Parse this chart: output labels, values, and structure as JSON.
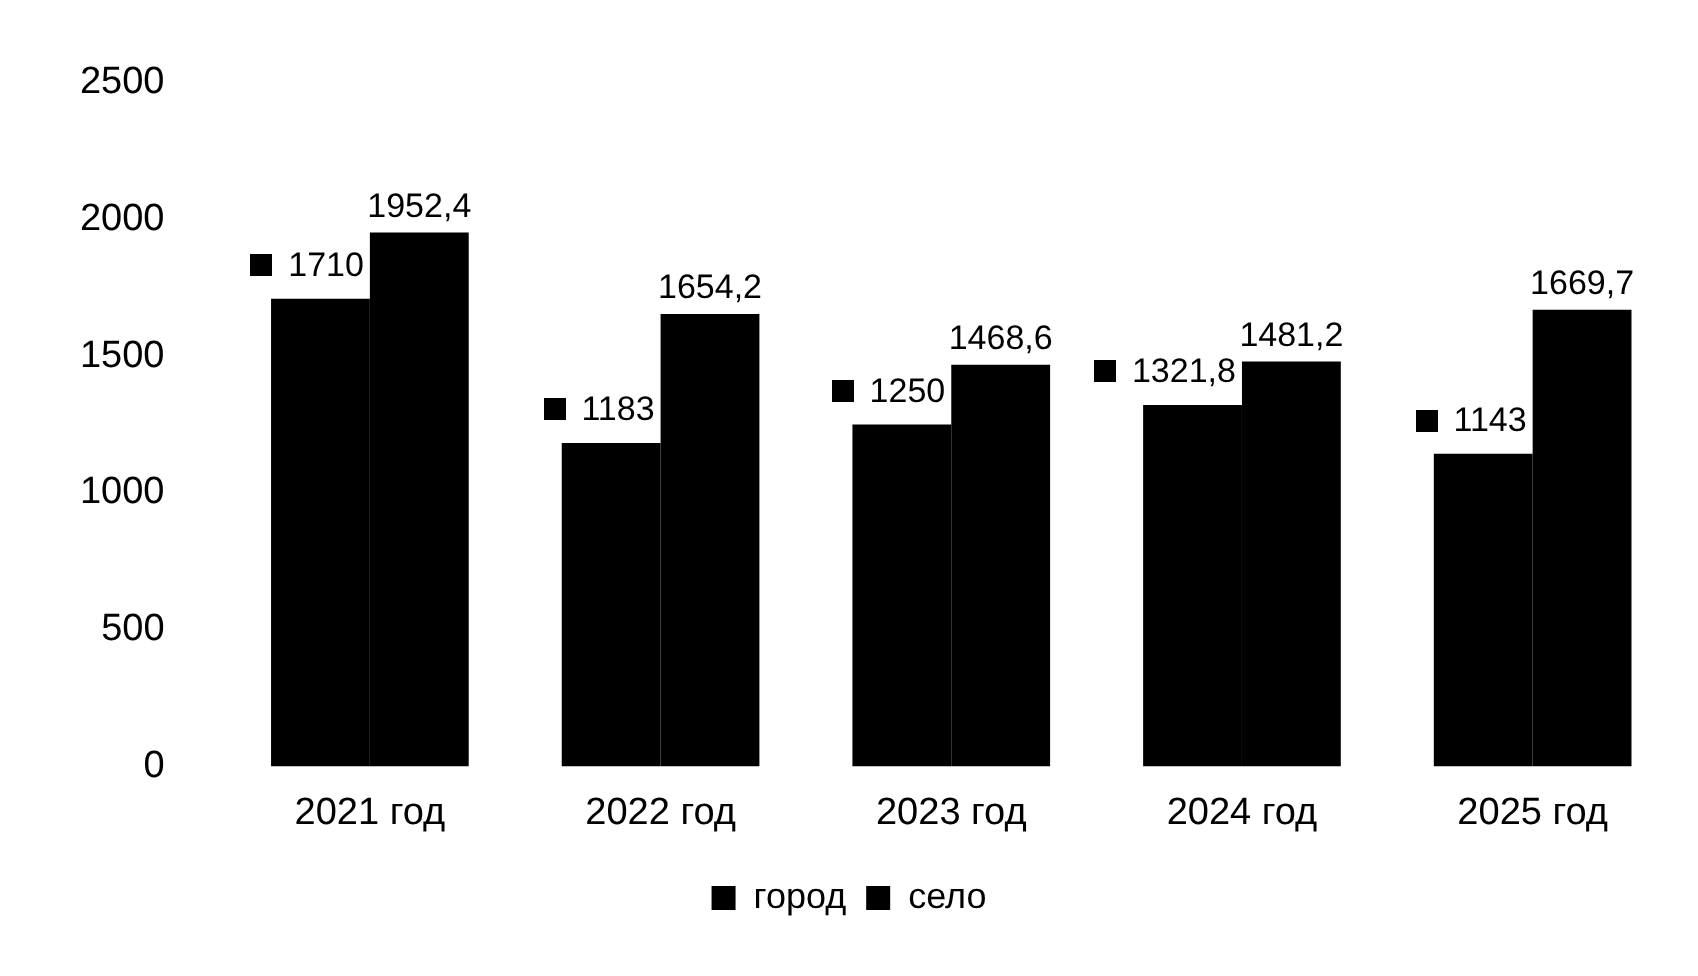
{
  "chart_data": {
    "type": "bar",
    "categories": [
      "2021 год",
      "2022 год",
      "2023 год",
      "2024 год",
      "2025 год"
    ],
    "series": [
      {
        "name": "город",
        "color": "#000000",
        "values": [
          1710,
          1183,
          1250,
          1321.8,
          1143
        ],
        "value_labels": [
          "1710",
          "1183",
          "1250",
          "1321,8",
          "1143"
        ]
      },
      {
        "name": "село",
        "color": "#000000",
        "values": [
          1952.4,
          1654.2,
          1468.6,
          1481.2,
          1669.7
        ],
        "value_labels": [
          "1952,4",
          "1654,2",
          "1468,6",
          "1481,2",
          "1669,7"
        ]
      }
    ],
    "ylim": [
      0,
      2500
    ],
    "yticks": [
      0,
      500,
      1000,
      1500,
      2000,
      2500
    ],
    "grid": false,
    "legend": "bottom"
  }
}
